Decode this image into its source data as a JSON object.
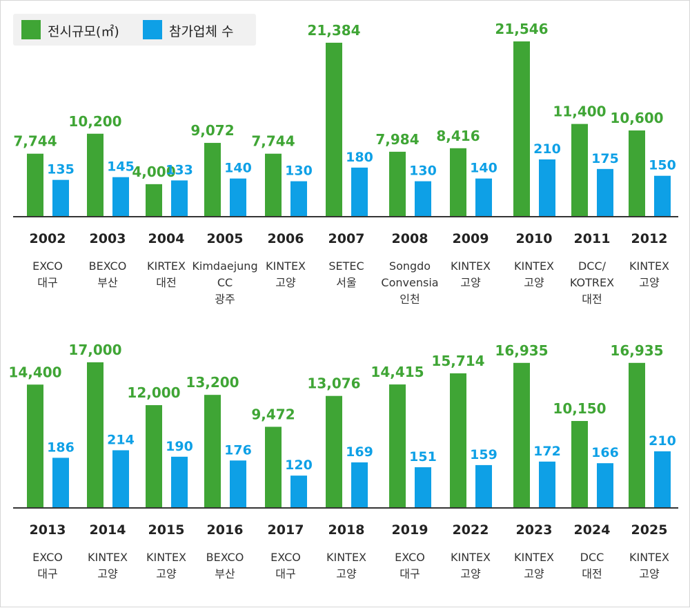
{
  "legend": {
    "area_label": "전시규모(㎡)",
    "companies_label": "참가업체 수"
  },
  "colors": {
    "area": "#3fa535",
    "companies": "#0ea0e6",
    "axis": "#333333"
  },
  "chart_data": [
    {
      "type": "bar",
      "categories": [
        "2002",
        "2003",
        "2004",
        "2005",
        "2006",
        "2007",
        "2008",
        "2009",
        "2010",
        "2011",
        "2012"
      ],
      "venues": [
        [
          "EXCO",
          "대구"
        ],
        [
          "BEXCO",
          "부산"
        ],
        [
          "KIRTEX",
          "대전"
        ],
        [
          "Kimdaejung",
          "CC",
          "광주"
        ],
        [
          "KINTEX",
          "고양"
        ],
        [
          "SETEC",
          "서울"
        ],
        [
          "Songdo",
          "Convensia",
          "인천"
        ],
        [
          "KINTEX",
          "고양"
        ],
        [
          "KINTEX",
          "고양"
        ],
        [
          "DCC/",
          "KOTREX",
          "대전"
        ],
        [
          "KINTEX",
          "고양"
        ]
      ],
      "series": [
        {
          "name": "전시규모(㎡)",
          "values": [
            7744,
            10200,
            4000,
            9072,
            7744,
            21384,
            7984,
            8416,
            21546,
            11400,
            10600
          ],
          "labels": [
            "7,744",
            "10,200",
            "4,000",
            "9,072",
            "7,744",
            "21,384",
            "7,984",
            "8,416",
            "21,546",
            "11,400",
            "10,600"
          ]
        },
        {
          "name": "참가업체 수",
          "values": [
            135,
            145,
            133,
            140,
            130,
            180,
            130,
            140,
            210,
            175,
            150
          ],
          "labels": [
            "135",
            "145",
            "133",
            "140",
            "130",
            "180",
            "130",
            "140",
            "210",
            "175",
            "150"
          ]
        }
      ]
    },
    {
      "type": "bar",
      "categories": [
        "2013",
        "2014",
        "2015",
        "2016",
        "2017",
        "2018",
        "2019",
        "2022",
        "2023",
        "2024",
        "2025"
      ],
      "venues": [
        [
          "EXCO",
          "대구"
        ],
        [
          "KINTEX",
          "고양"
        ],
        [
          "KINTEX",
          "고양"
        ],
        [
          "BEXCO",
          "부산"
        ],
        [
          "EXCO",
          "대구"
        ],
        [
          "KINTEX",
          "고양"
        ],
        [
          "EXCO",
          "대구"
        ],
        [
          "KINTEX",
          "고양"
        ],
        [
          "KINTEX",
          "고양"
        ],
        [
          "DCC",
          "대전"
        ],
        [
          "KINTEX",
          "고양"
        ]
      ],
      "series": [
        {
          "name": "전시규모(㎡)",
          "values": [
            14400,
            17000,
            12000,
            13200,
            9472,
            13076,
            14415,
            15714,
            16935,
            10150,
            16935
          ],
          "labels": [
            "14,400",
            "17,000",
            "12,000",
            "13,200",
            "9,472",
            "13,076",
            "14,415",
            "15,714",
            "16,935",
            "10,150",
            "16,935"
          ]
        },
        {
          "name": "참가업체 수",
          "values": [
            186,
            214,
            190,
            176,
            120,
            169,
            151,
            159,
            172,
            166,
            210
          ],
          "labels": [
            "186",
            "214",
            "190",
            "176",
            "120",
            "169",
            "151",
            "159",
            "172",
            "166",
            "210"
          ]
        }
      ]
    }
  ]
}
